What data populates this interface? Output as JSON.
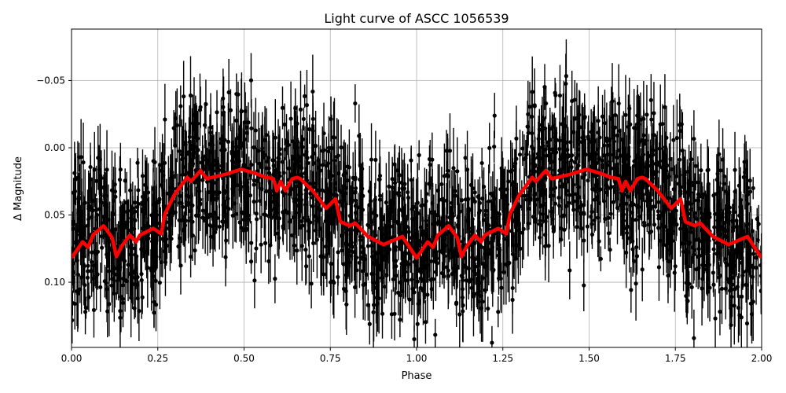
{
  "chart_data": {
    "type": "scatter",
    "title": "Light curve of ASCC 1056539",
    "xlabel": "Phase",
    "ylabel": "Δ Magnitude",
    "xlim": [
      0,
      2.0
    ],
    "ylim": [
      0.1485,
      -0.0883
    ],
    "y_inverted": true,
    "grid": true,
    "x_ticks": [
      "0.00",
      "0.25",
      "0.50",
      "0.75",
      "1.00",
      "1.25",
      "1.50",
      "1.75",
      "2.00"
    ],
    "x_tick_values": [
      0,
      0.25,
      0.5,
      0.75,
      1.0,
      1.25,
      1.5,
      1.75,
      2.0
    ],
    "y_ticks": [
      "−0.05",
      "0.00",
      "0.05",
      "0.10"
    ],
    "y_tick_values": [
      -0.05,
      0,
      0.05,
      0.1
    ],
    "series": [
      {
        "kind": "errorbar-points",
        "color": "#000000"
      },
      {
        "kind": "line",
        "color": "#ff0000",
        "x": [
          0,
          0.032,
          0.048,
          0.062,
          0.093,
          0.118,
          0.13,
          0.146,
          0.169,
          0.187,
          0.198,
          0.237,
          0.26,
          0.271,
          0.298,
          0.335,
          0.346,
          0.374,
          0.392,
          0.442,
          0.492,
          0.533,
          0.563,
          0.585,
          0.595,
          0.606,
          0.62,
          0.64,
          0.654,
          0.663,
          0.699,
          0.738,
          0.765,
          0.779,
          0.806,
          0.822,
          0.859,
          0.904,
          0.959,
          1.0,
          1.032,
          1.048,
          1.062,
          1.093,
          1.118,
          1.13,
          1.146,
          1.169,
          1.187,
          1.198,
          1.237,
          1.26,
          1.271,
          1.298,
          1.335,
          1.346,
          1.374,
          1.392,
          1.442,
          1.492,
          1.533,
          1.563,
          1.585,
          1.595,
          1.606,
          1.62,
          1.64,
          1.654,
          1.663,
          1.699,
          1.738,
          1.765,
          1.779,
          1.806,
          1.822,
          1.859,
          1.904,
          1.959,
          2.0
        ],
        "y": [
          0.082,
          0.07,
          0.074,
          0.065,
          0.058,
          0.067,
          0.081,
          0.073,
          0.065,
          0.07,
          0.065,
          0.06,
          0.064,
          0.049,
          0.035,
          0.022,
          0.025,
          0.017,
          0.023,
          0.02,
          0.016,
          0.019,
          0.022,
          0.023,
          0.032,
          0.025,
          0.032,
          0.023,
          0.022,
          0.023,
          0.032,
          0.045,
          0.038,
          0.055,
          0.058,
          0.056,
          0.066,
          0.072,
          0.066,
          0.082,
          0.07,
          0.074,
          0.065,
          0.058,
          0.067,
          0.081,
          0.073,
          0.065,
          0.07,
          0.065,
          0.06,
          0.064,
          0.049,
          0.035,
          0.022,
          0.025,
          0.017,
          0.023,
          0.02,
          0.016,
          0.019,
          0.022,
          0.023,
          0.032,
          0.025,
          0.032,
          0.023,
          0.022,
          0.023,
          0.032,
          0.045,
          0.038,
          0.055,
          0.058,
          0.056,
          0.066,
          0.072,
          0.066,
          0.082
        ]
      }
    ]
  }
}
